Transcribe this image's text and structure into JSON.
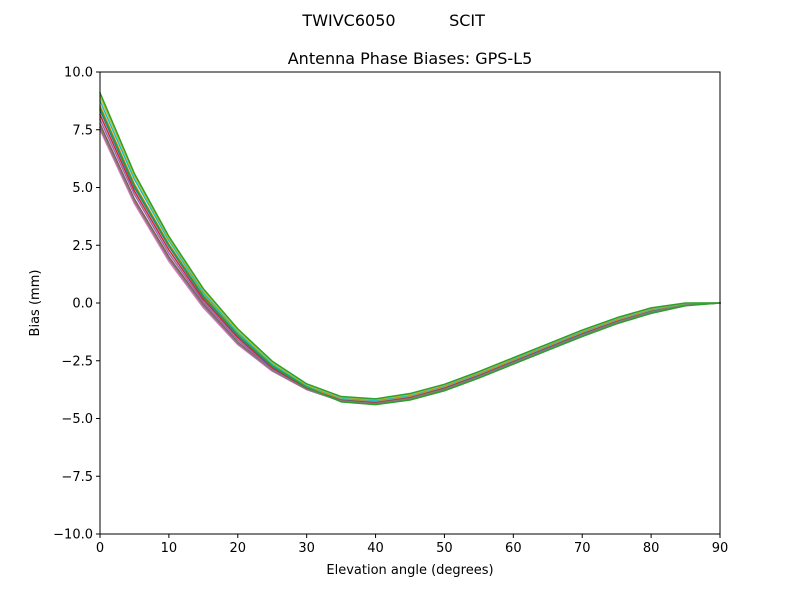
{
  "figure": {
    "suptitle_left": "TWIVC6050",
    "suptitle_right": "SCIT"
  },
  "chart_data": {
    "type": "line",
    "title": "Antenna Phase Biases: GPS-L5",
    "xlabel": "Elevation angle (degrees)",
    "ylabel": "Bias (mm)",
    "xlim": [
      0,
      90
    ],
    "ylim": [
      -10,
      10
    ],
    "xticks": [
      0,
      10,
      20,
      30,
      40,
      50,
      60,
      70,
      80,
      90
    ],
    "yticks": [
      -10,
      -7.5,
      -5,
      -2.5,
      0,
      2.5,
      5,
      7.5,
      10
    ],
    "xtick_labels": [
      "0",
      "10",
      "20",
      "30",
      "40",
      "50",
      "60",
      "70",
      "80",
      "90"
    ],
    "ytick_labels": [
      "−10.0",
      "−7.5",
      "−5.0",
      "−2.5",
      "0.0",
      "2.5",
      "5.0",
      "7.5",
      "10.0"
    ],
    "grid": false,
    "legend": "none",
    "x": [
      0,
      5,
      10,
      15,
      20,
      25,
      30,
      35,
      40,
      45,
      50,
      55,
      60,
      65,
      70,
      75,
      80,
      85,
      90
    ],
    "series": [
      {
        "color": "#e377c2",
        "values": [
          7.5,
          4.3,
          1.8,
          -0.2,
          -1.8,
          -2.95,
          -3.75,
          -4.25,
          -4.38,
          -4.15,
          -3.75,
          -3.2,
          -2.6,
          -2.0,
          -1.4,
          -0.85,
          -0.4,
          -0.1,
          0.0
        ]
      },
      {
        "color": "#8c564b",
        "values": [
          7.75,
          4.5,
          2.0,
          -0.05,
          -1.7,
          -2.9,
          -3.72,
          -4.22,
          -4.35,
          -4.12,
          -3.72,
          -3.18,
          -2.58,
          -1.98,
          -1.38,
          -0.83,
          -0.38,
          -0.08,
          0.0
        ]
      },
      {
        "color": "#9467bd",
        "values": [
          7.95,
          4.7,
          2.15,
          0.05,
          -1.6,
          -2.85,
          -3.7,
          -4.2,
          -4.32,
          -4.1,
          -3.7,
          -3.15,
          -2.55,
          -1.95,
          -1.35,
          -0.8,
          -0.36,
          -0.07,
          0.0
        ]
      },
      {
        "color": "#d62728",
        "values": [
          8.15,
          4.85,
          2.3,
          0.15,
          -1.5,
          -2.8,
          -3.68,
          -4.18,
          -4.3,
          -4.08,
          -3.68,
          -3.12,
          -2.52,
          -1.92,
          -1.32,
          -0.78,
          -0.34,
          -0.06,
          0.0
        ]
      },
      {
        "color": "#1f77b4",
        "values": [
          8.35,
          5.0,
          2.45,
          0.25,
          -1.42,
          -2.75,
          -3.65,
          -4.16,
          -4.27,
          -4.05,
          -3.65,
          -3.1,
          -2.5,
          -1.9,
          -1.3,
          -0.76,
          -0.32,
          -0.05,
          0.0
        ]
      },
      {
        "color": "#ff7f0e",
        "values": [
          8.55,
          5.15,
          2.55,
          0.35,
          -1.35,
          -2.7,
          -3.62,
          -4.14,
          -4.25,
          -4.03,
          -3.62,
          -3.07,
          -2.47,
          -1.87,
          -1.27,
          -0.74,
          -0.3,
          -0.04,
          0.0
        ]
      },
      {
        "color": "#17becf",
        "values": [
          8.75,
          5.35,
          2.7,
          0.45,
          -1.28,
          -2.65,
          -3.58,
          -4.11,
          -4.22,
          -4.0,
          -3.58,
          -3.03,
          -2.43,
          -1.83,
          -1.23,
          -0.7,
          -0.27,
          -0.02,
          0.0
        ]
      },
      {
        "color": "#bcbd22",
        "values": [
          8.95,
          5.5,
          2.8,
          0.55,
          -1.2,
          -2.58,
          -3.54,
          -4.08,
          -4.18,
          -3.96,
          -3.55,
          -3.0,
          -2.4,
          -1.8,
          -1.2,
          -0.67,
          -0.24,
          -0.01,
          0.0
        ]
      },
      {
        "color": "#2ca02c",
        "values": [
          9.1,
          5.6,
          2.88,
          0.62,
          -1.12,
          -2.52,
          -3.5,
          -4.05,
          -4.15,
          -3.92,
          -3.52,
          -2.97,
          -2.37,
          -1.77,
          -1.17,
          -0.64,
          -0.21,
          0.0,
          0.0
        ]
      },
      {
        "color": "#7f7f7f",
        "values": [
          7.6,
          4.4,
          1.9,
          -0.12,
          -1.75,
          -2.92,
          -3.74,
          -4.24,
          -4.36,
          -4.14,
          -3.74,
          -3.19,
          -2.59,
          -1.99,
          -1.39,
          -0.84,
          -0.39,
          -0.09,
          0.0
        ]
      },
      {
        "color": "#2ca02c",
        "values": [
          8.45,
          5.08,
          2.5,
          0.3,
          -1.38,
          -2.72,
          -3.64,
          -4.28,
          -4.4,
          -4.2,
          -3.8,
          -3.25,
          -2.65,
          -2.05,
          -1.45,
          -0.9,
          -0.45,
          -0.12,
          0.0
        ]
      }
    ]
  }
}
